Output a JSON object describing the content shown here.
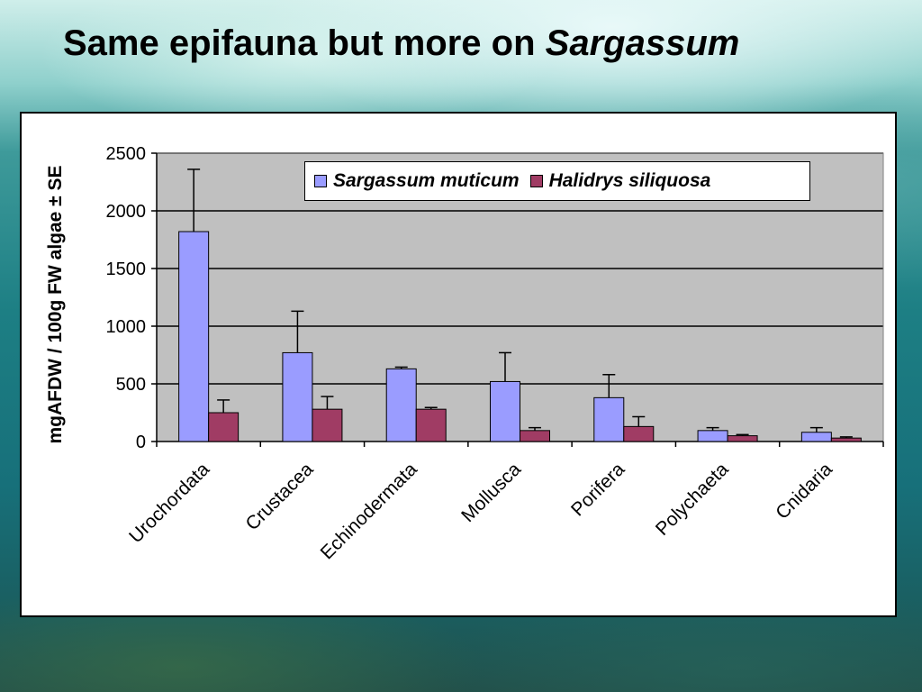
{
  "slide": {
    "title_main": "Same epifauna but more on ",
    "title_italic": "Sargassum"
  },
  "colors": {
    "sargassum": "#9a9cff",
    "halidrys": "#a03c64",
    "plot_bg": "#c0c0c0",
    "gridline": "#000000"
  },
  "chart_data": {
    "type": "bar",
    "title": "",
    "xlabel": "",
    "ylabel": "mgAFDW / 100g FW algae ± SE",
    "ylim": [
      0,
      2500
    ],
    "yticks": [
      0,
      500,
      1000,
      1500,
      2000,
      2500
    ],
    "grid": true,
    "legend_position": "top-right",
    "categories": [
      "Urochordata",
      "Crustacea",
      "Echinodermata",
      "Mollusca",
      "Porifera",
      "Polychaeta",
      "Cnidaria"
    ],
    "series": [
      {
        "name": "Sargassum muticum",
        "values": [
          1820,
          770,
          630,
          520,
          380,
          95,
          80
        ],
        "se": [
          540,
          360,
          15,
          250,
          200,
          25,
          40
        ]
      },
      {
        "name": "Halidrys siliquosa",
        "values": [
          250,
          280,
          280,
          95,
          130,
          50,
          30
        ],
        "se": [
          110,
          110,
          15,
          25,
          85,
          10,
          10
        ]
      }
    ]
  }
}
